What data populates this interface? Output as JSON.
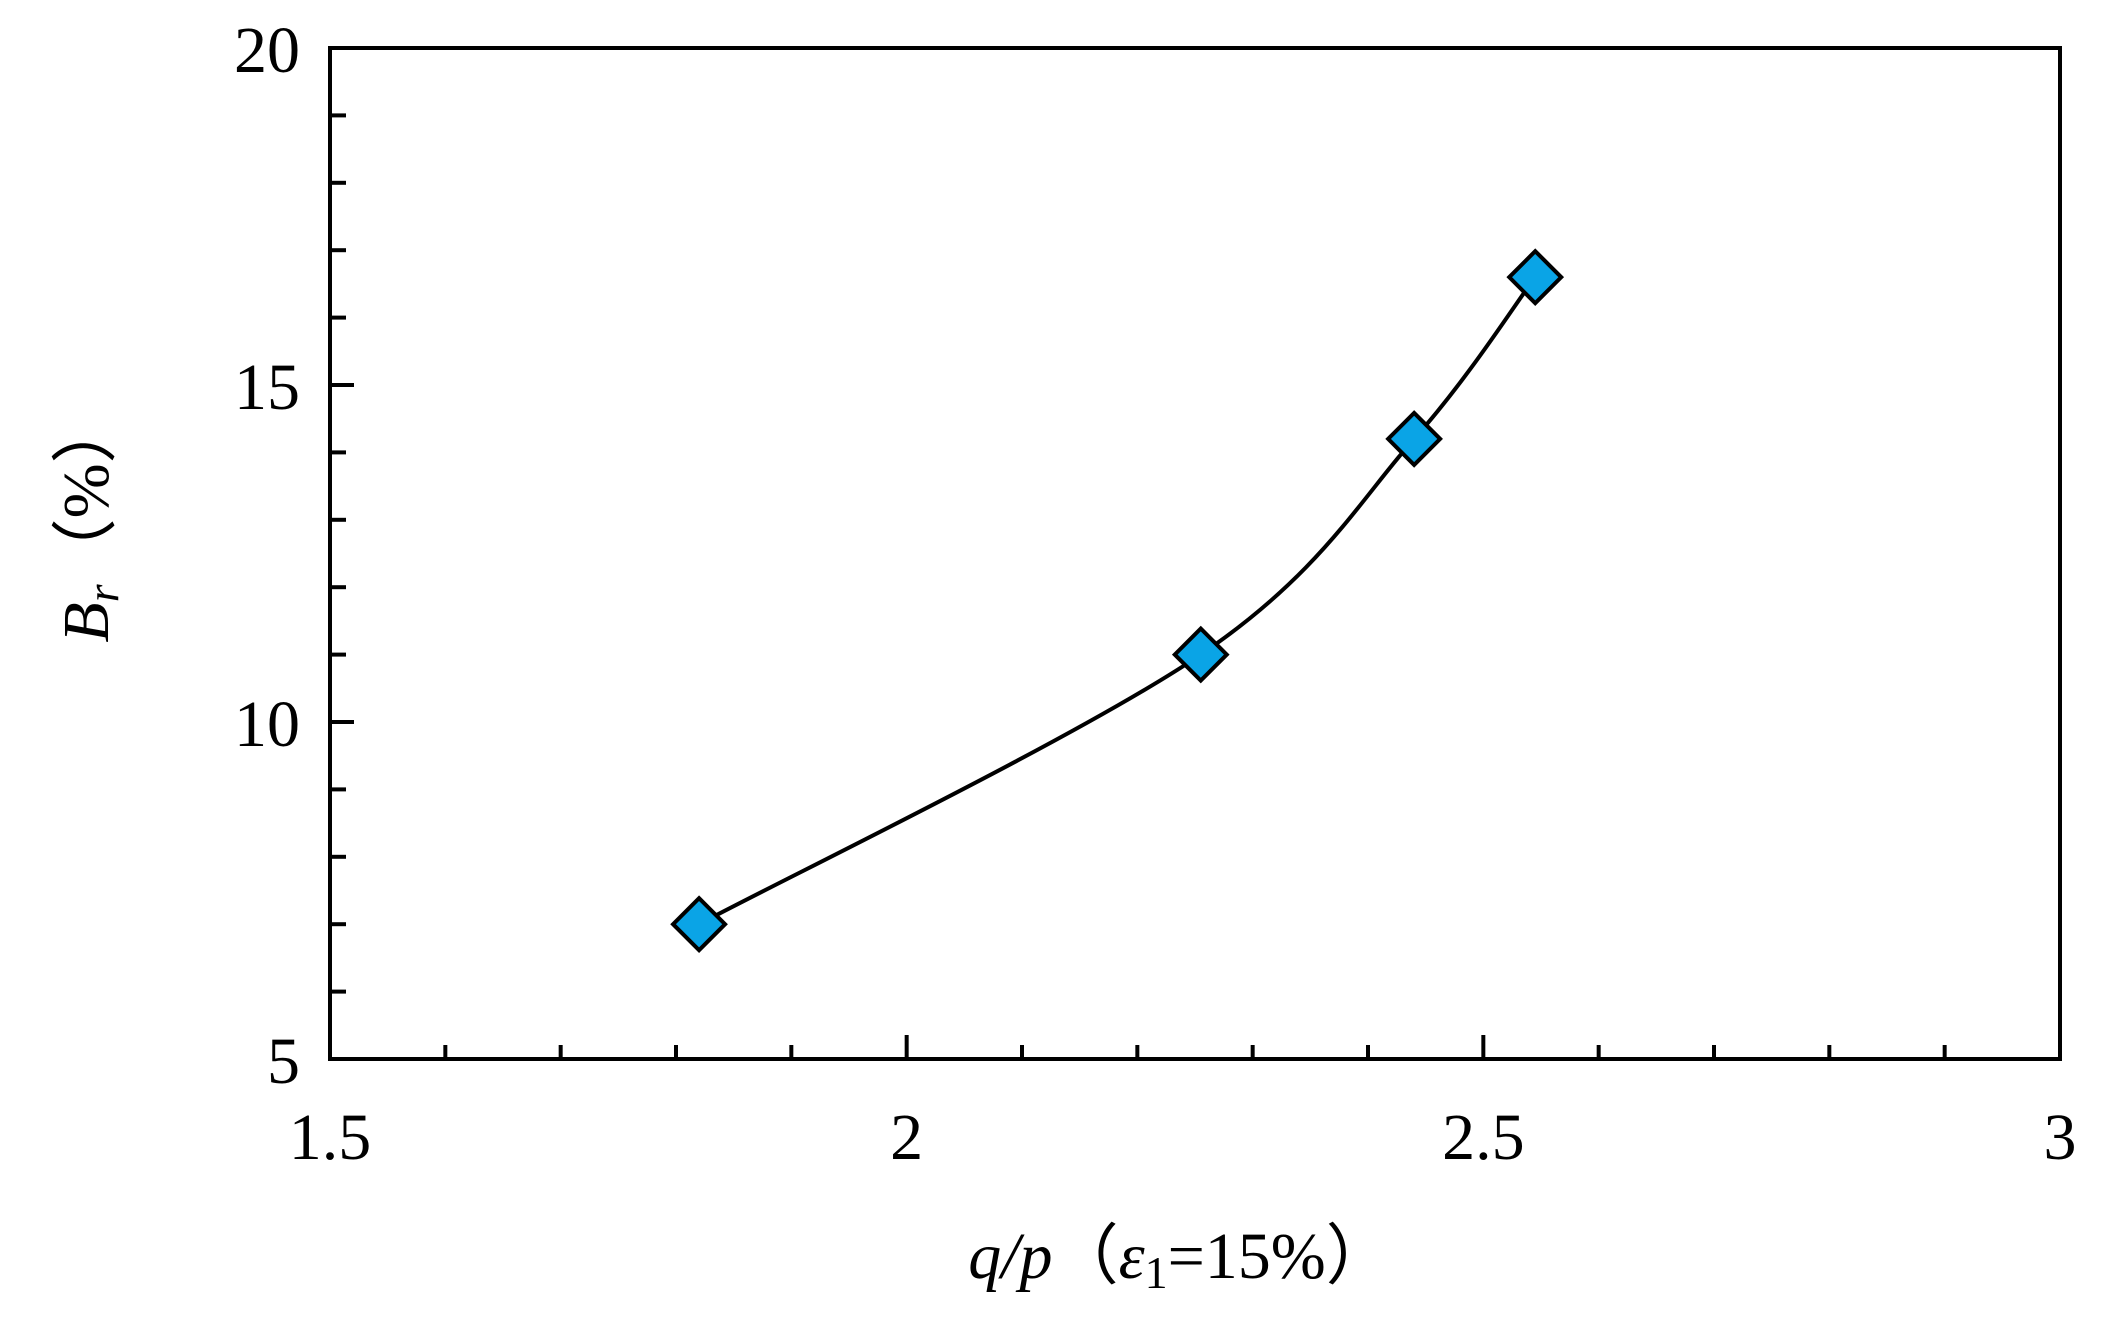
{
  "chart_data": {
    "type": "line",
    "title": "",
    "x_axis": {
      "label_var": "q/p",
      "label_cond_open": "（",
      "label_cond_sym": "ε",
      "label_cond_sub": "1",
      "label_cond_rest": "=15%）",
      "range": [
        1.5,
        3
      ],
      "major_ticks": [
        1.5,
        2,
        2.5,
        3
      ],
      "tick_labels": [
        "1.5",
        "2",
        "2.5",
        "3"
      ],
      "minor_step": 0.1
    },
    "y_axis": {
      "label_var": "B",
      "label_sub": "r",
      "label_unit": "（%）",
      "range": [
        5,
        20
      ],
      "major_ticks": [
        5,
        10,
        15,
        20
      ],
      "tick_labels": [
        "5",
        "10",
        "15",
        "20"
      ],
      "minor_step": 1
    },
    "grid": false,
    "series": [
      {
        "x": [
          1.82,
          2.255,
          2.44,
          2.545
        ],
        "y": [
          7.0,
          11.0,
          14.2,
          16.6
        ],
        "marker": "diamond",
        "marker_color": "#0aa4e6",
        "line_color": "#000000",
        "smooth": true
      }
    ]
  }
}
